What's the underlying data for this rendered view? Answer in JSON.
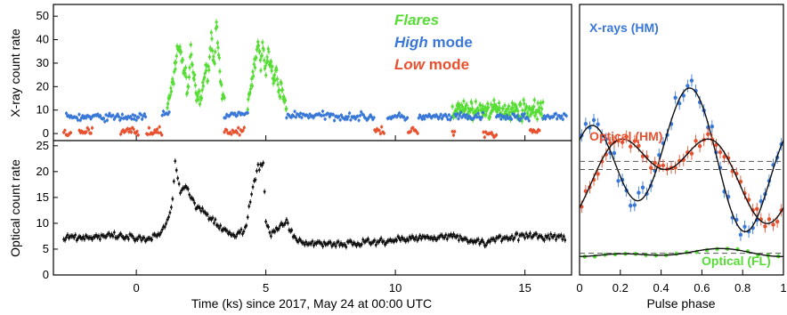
{
  "colors": {
    "flare": "#55dd33",
    "high": "#3a78d8",
    "low": "#e8502e",
    "optical": "#111111",
    "model": "#111111",
    "axis": "#000000"
  },
  "chart_data": [
    {
      "type": "scatter",
      "ylabel": "X-ray count rate",
      "xlim": [
        -3.2,
        16.8
      ],
      "ylim": [
        -3,
        55
      ],
      "yticks": [
        "0",
        "10",
        "20",
        "30",
        "40",
        "50"
      ],
      "legend_placement": "top-right",
      "legend": [
        {
          "italic": "Flares",
          "rest": "",
          "color": "flare"
        },
        {
          "italic": "High",
          "rest": " mode",
          "color": "high"
        },
        {
          "italic": "Low",
          "rest": " mode",
          "color": "low"
        }
      ],
      "series": [
        {
          "name": "Flares",
          "color": "flare",
          "segments": [
            {
              "x": [
                1.2,
                1.4,
                1.6,
                1.8,
                2.0,
                2.1,
                2.3,
                2.5,
                2.6,
                2.8,
                2.9,
                3.0,
                3.1,
                3.2,
                3.3,
                3.4
              ],
              "y": [
                12,
                20,
                38,
                30,
                18,
                36,
                16,
                14,
                24,
                28,
                42,
                30,
                46,
                28,
                16,
                14
              ]
            },
            {
              "x": [
                4.3,
                4.4,
                4.5,
                4.6,
                4.7,
                4.8,
                4.9,
                5.0,
                5.1,
                5.2,
                5.3,
                5.4,
                5.5,
                5.6,
                5.7,
                5.8
              ],
              "y": [
                12,
                20,
                24,
                32,
                38,
                28,
                40,
                24,
                36,
                30,
                22,
                26,
                16,
                20,
                14,
                12
              ]
            },
            {
              "x": [
                12.2,
                15.7
              ],
              "y": [
                10,
                10
              ]
            }
          ]
        },
        {
          "name": "High mode",
          "color": "high",
          "segments": [
            {
              "x": [
                -2.7,
                0.4
              ],
              "y": [
                7,
                7
              ]
            },
            {
              "x": [
                1.0,
                1.3
              ],
              "y": [
                8,
                8
              ]
            },
            {
              "x": [
                3.4,
                4.3
              ],
              "y": [
                8,
                8
              ]
            },
            {
              "x": [
                5.8,
                9.2
              ],
              "y": [
                8,
                7
              ]
            },
            {
              "x": [
                9.7,
                10.5
              ],
              "y": [
                7,
                7
              ]
            },
            {
              "x": [
                10.9,
                12.2
              ],
              "y": [
                7,
                7
              ]
            },
            {
              "x": [
                12.3,
                13.4
              ],
              "y": [
                7,
                7
              ]
            },
            {
              "x": [
                13.9,
                15.2
              ],
              "y": [
                7,
                7
              ]
            },
            {
              "x": [
                15.7,
                16.6
              ],
              "y": [
                7,
                7
              ]
            }
          ]
        },
        {
          "name": "Low mode",
          "color": "low",
          "segments": [
            {
              "x": [
                -2.8,
                -2.5
              ],
              "y": [
                0,
                0
              ]
            },
            {
              "x": [
                -2.2,
                -1.7
              ],
              "y": [
                1,
                1
              ]
            },
            {
              "x": [
                -0.6,
                0.1
              ],
              "y": [
                1,
                1
              ]
            },
            {
              "x": [
                0.4,
                1.0
              ],
              "y": [
                1,
                1
              ]
            },
            {
              "x": [
                3.4,
                4.2
              ],
              "y": [
                1,
                1
              ]
            },
            {
              "x": [
                9.2,
                9.6
              ],
              "y": [
                1,
                1
              ]
            },
            {
              "x": [
                10.5,
                10.9
              ],
              "y": [
                1,
                1
              ]
            },
            {
              "x": [
                12.2,
                12.3
              ],
              "y": [
                1,
                1
              ]
            },
            {
              "x": [
                13.4,
                13.9
              ],
              "y": [
                0,
                0
              ]
            },
            {
              "x": [
                15.2,
                15.6
              ],
              "y": [
                1,
                1
              ]
            }
          ]
        }
      ]
    },
    {
      "type": "scatter",
      "ylabel": "Optical count rate",
      "xlabel": "Time (ks) since 2017, May 24 at 00:00 UTC",
      "xlim": [
        -3.2,
        16.8
      ],
      "ylim": [
        0,
        26
      ],
      "xticks": [
        "0",
        "5",
        "10",
        "15"
      ],
      "yticks": [
        "0",
        "5",
        "10",
        "15",
        "20",
        "25"
      ],
      "series": [
        {
          "name": "",
          "color": "optical",
          "x": [
            -2.8,
            -2.0,
            -1.0,
            0.0,
            0.4,
            0.9,
            1.2,
            1.4,
            1.5,
            1.7,
            1.9,
            2.1,
            2.3,
            2.6,
            2.9,
            3.2,
            3.5,
            3.8,
            4.2,
            4.5,
            4.7,
            4.9,
            5.0,
            5.2,
            5.5,
            5.8,
            6.1,
            6.5,
            7.0,
            8.0,
            9.0,
            10.0,
            11.0,
            12.0,
            13.0,
            13.5,
            14.0,
            15.0,
            16.0,
            16.6
          ],
          "y": [
            7.4,
            7.3,
            7.5,
            7.1,
            6.6,
            7.8,
            10.5,
            14.5,
            22.0,
            16.0,
            17.5,
            15.0,
            13.5,
            12.5,
            11.0,
            9.5,
            8.2,
            7.6,
            8.6,
            17.0,
            20.5,
            21.5,
            10.5,
            8.0,
            9.0,
            10.5,
            7.2,
            6.0,
            6.2,
            6.0,
            6.3,
            6.8,
            7.2,
            7.6,
            6.6,
            6.2,
            7.3,
            7.5,
            7.4,
            7.2
          ]
        }
      ]
    },
    {
      "type": "scatter",
      "xlabel": "Pulse phase",
      "xlim": [
        0,
        1
      ],
      "xticks": [
        "0",
        "0.2",
        "0.4",
        "0.6",
        "0.8",
        "1"
      ],
      "annotations": [
        "X-rays (HM)",
        "Optical (HM)",
        "Optical (FL)"
      ],
      "series": [
        {
          "name": "X-rays (HM)",
          "color": "high",
          "mean": 0.42,
          "amp1": 0.09,
          "phase1": 0.44,
          "amp2": 0.2,
          "phase2": 0.05,
          "scatter": 0.03
        },
        {
          "name": "Optical (HM)",
          "color": "low",
          "mean": 0.39,
          "amp1": 0.1,
          "phase1": 0.42,
          "amp2": 0.1,
          "phase2": 0.17,
          "scatter": 0.02
        },
        {
          "name": "Optical (FL)",
          "color": "flare",
          "mean": 0.08,
          "amp1": 0.01,
          "phase1": 0.66,
          "amp2": 0.008,
          "phase2": 0.2,
          "scatter": 0.004
        }
      ]
    }
  ]
}
